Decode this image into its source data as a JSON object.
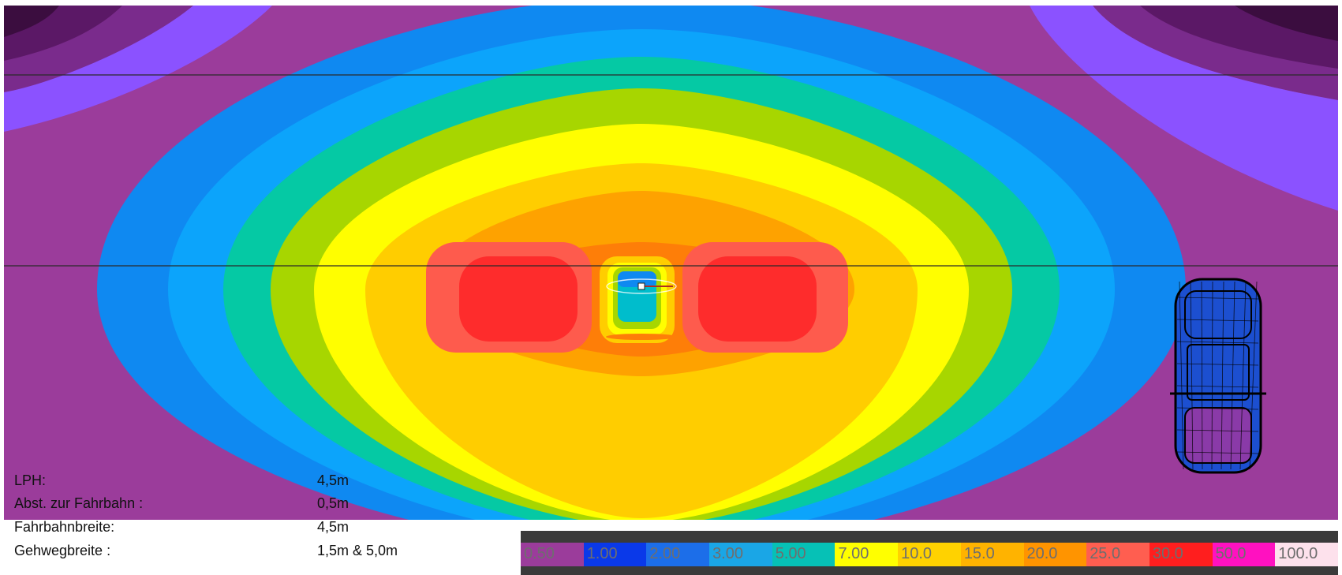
{
  "diagram": {
    "colors": [
      "#9b3c9b",
      "#4d6fff",
      "#0f89f1",
      "#0ca4fb",
      "#05c9a4",
      "#a7d600",
      "#fffe00",
      "#ffcd00",
      "#fea200",
      "#fe7e08",
      "#fe5b4d",
      "#fe2c2c",
      "#00bdcc",
      "#ffffff",
      "#7a2b8c",
      "#5b1866",
      "#3b0d3f",
      "#8b52ff"
    ]
  },
  "info": [
    {
      "label": "LPH:",
      "value": "4,5m"
    },
    {
      "label": "Abst. zur Fahrbahn :",
      "value": "0,5m"
    },
    {
      "label": "Fahrbahnbreite:",
      "value": "4,5m"
    },
    {
      "label": "Gehwegbreite :",
      "value": "1,5m & 5,0m"
    }
  ],
  "legend": [
    {
      "label": "0.50",
      "color": "#9b3c9b"
    },
    {
      "label": "1.00",
      "color": "#0a39e9"
    },
    {
      "label": "2.00",
      "color": "#1c6ee9"
    },
    {
      "label": "3.00",
      "color": "#1aa6e6"
    },
    {
      "label": "5.00",
      "color": "#06c1b6"
    },
    {
      "label": "7.00",
      "color": "#ffff00"
    },
    {
      "label": "10.0",
      "color": "#ffd200"
    },
    {
      "label": "15.0",
      "color": "#ffb300"
    },
    {
      "label": "20.0",
      "color": "#ff9400"
    },
    {
      "label": "25.0",
      "color": "#ff5e50"
    },
    {
      "label": "30.0",
      "color": "#ff1e1e"
    },
    {
      "label": "50.0",
      "color": "#ff11c0"
    },
    {
      "label": "100.0",
      "color": "#fde1ec"
    }
  ]
}
